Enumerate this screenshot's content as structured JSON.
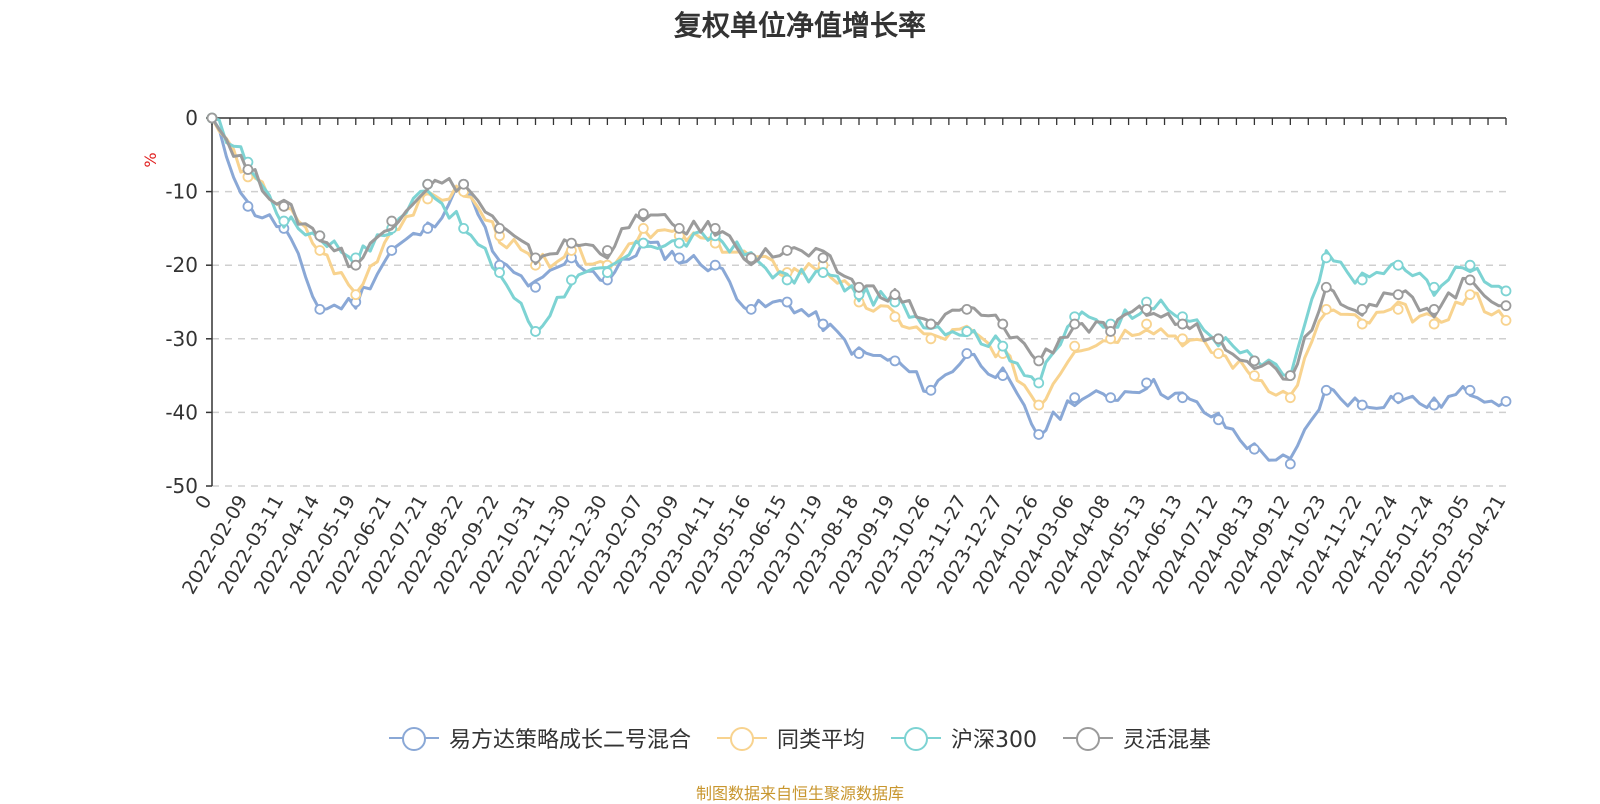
{
  "chart_data": {
    "type": "line",
    "title": "复权单位净值增长率",
    "ylabel": "%",
    "ylim": [
      -50,
      0
    ],
    "yticks": [
      "0",
      "-10",
      "-20",
      "-30",
      "-40",
      "-50"
    ],
    "grid": true,
    "legend_position": "bottom",
    "categories": [
      "0",
      "2022-02-09",
      "2022-03-11",
      "2022-04-14",
      "2022-05-19",
      "2022-06-21",
      "2022-07-21",
      "2022-08-22",
      "2022-09-22",
      "2022-10-31",
      "2022-11-30",
      "2022-12-30",
      "2023-02-07",
      "2023-03-09",
      "2023-04-11",
      "2023-05-16",
      "2023-06-15",
      "2023-07-19",
      "2023-08-18",
      "2023-09-19",
      "2023-10-26",
      "2023-11-27",
      "2023-12-27",
      "2024-01-26",
      "2024-03-06",
      "2024-04-08",
      "2024-05-13",
      "2024-06-13",
      "2024-07-12",
      "2024-08-13",
      "2024-09-12",
      "2024-10-23",
      "2024-11-22",
      "2024-12-24",
      "2025-01-24",
      "2025-03-05",
      "2025-04-21"
    ],
    "series": [
      {
        "name": "易方达策略成长二号混合",
        "color": "#8aa8d6",
        "values": [
          0,
          -12,
          -15,
          -26,
          -25,
          -18,
          -15,
          -9,
          -20,
          -23,
          -19,
          -22,
          -17,
          -19,
          -20,
          -26,
          -25,
          -28,
          -32,
          -33,
          -37,
          -32,
          -35,
          -43,
          -38,
          -38,
          -36,
          -38,
          -41,
          -45,
          -47,
          -37,
          -39,
          -38,
          -39,
          -37,
          -38.5
        ]
      },
      {
        "name": "同类平均",
        "color": "#f8d38f",
        "values": [
          0,
          -8,
          -12,
          -18,
          -24,
          -15,
          -11,
          -10,
          -16,
          -20,
          -18,
          -20,
          -15,
          -16,
          -17,
          -19,
          -21,
          -20,
          -25,
          -27,
          -30,
          -29,
          -32,
          -39,
          -31,
          -30,
          -28,
          -30,
          -32,
          -35,
          -38,
          -26,
          -28,
          -26,
          -28,
          -24,
          -27.5
        ]
      },
      {
        "name": "沪深300",
        "color": "#7dd3d3",
        "values": [
          0,
          -6,
          -14,
          -16,
          -19,
          -15,
          -9,
          -15,
          -21,
          -29,
          -22,
          -21,
          -17,
          -17,
          -16,
          -19,
          -22,
          -21,
          -24,
          -25,
          -28,
          -29,
          -31,
          -36,
          -27,
          -28,
          -25,
          -27,
          -30,
          -33,
          -35,
          -19,
          -22,
          -20,
          -23,
          -20,
          -23.5
        ]
      },
      {
        "name": "灵活混基",
        "color": "#9b9b9b",
        "values": [
          0,
          -7,
          -12,
          -16,
          -20,
          -14,
          -9,
          -9,
          -15,
          -19,
          -17,
          -18,
          -13,
          -15,
          -15,
          -19,
          -18,
          -19,
          -23,
          -24,
          -28,
          -26,
          -28,
          -33,
          -28,
          -29,
          -26,
          -28,
          -30,
          -33,
          -35,
          -23,
          -26,
          -24,
          -26,
          -22,
          -25.5
        ]
      }
    ]
  },
  "source_note": "制图数据来自恒生聚源数据库"
}
